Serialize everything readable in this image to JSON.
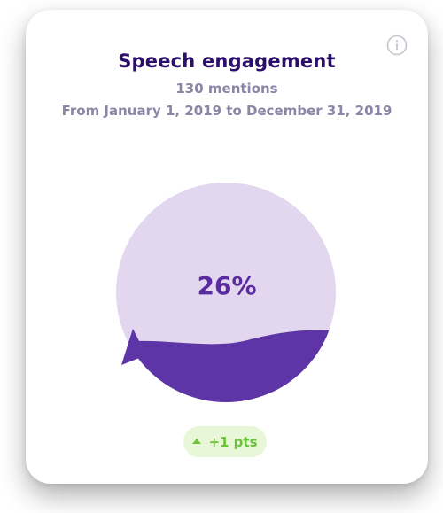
{
  "card": {
    "title": "Speech engagement",
    "mentions": "130 mentions",
    "date_range": "From January 1, 2019 to December 31, 2019",
    "info_icon": "info-icon"
  },
  "gauge": {
    "percent_label": "26%",
    "fill_fraction": 0.26,
    "colors": {
      "background": "#e2d7ee",
      "fill": "#5e35a6"
    }
  },
  "change": {
    "label": "+1 pts",
    "direction": "up",
    "color": "#6cc23a",
    "background": "#e8f7d8"
  }
}
